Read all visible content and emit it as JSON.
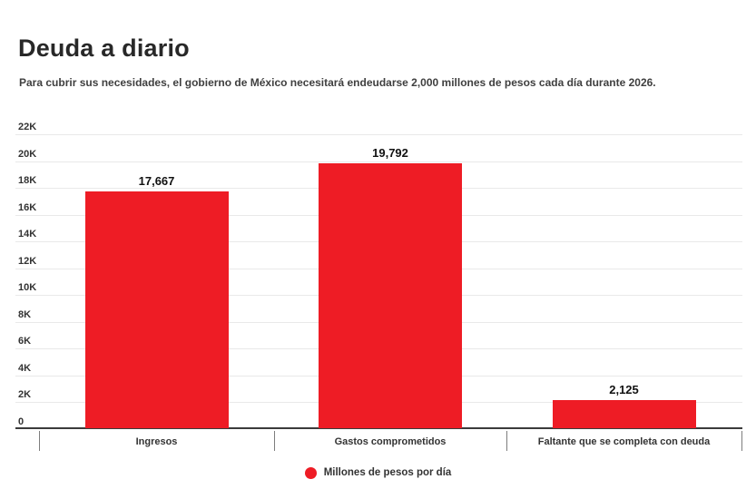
{
  "header": {
    "title": "Deuda a diario",
    "subtitle": "Para cubrir sus necesidades, el gobierno de México necesitará endeudarse 2,000 millones de pesos cada día durante 2026."
  },
  "chart_data": {
    "type": "bar",
    "title": "Deuda a diario",
    "subtitle": "Para cubrir sus necesidades, el gobierno de México necesitará endeudarse 2,000 millones de pesos cada día durante 2026.",
    "categories": [
      "Ingresos",
      "Gastos comprometidos",
      "Faltante que se completa con deuda"
    ],
    "values": [
      17667,
      19792,
      2125
    ],
    "value_labels": [
      "17,667",
      "19,792",
      "2,125"
    ],
    "xlabel": "",
    "ylabel": "",
    "ylim": [
      0,
      22000
    ],
    "ytick_labels": [
      "22K",
      "20K",
      "18K",
      "16K",
      "14K",
      "12K",
      "10K",
      "8K",
      "6K",
      "4K",
      "2K",
      "0"
    ],
    "ytick_values": [
      22000,
      20000,
      18000,
      16000,
      14000,
      12000,
      10000,
      8000,
      6000,
      4000,
      2000,
      0
    ],
    "grid": "horizontal",
    "legend": {
      "label": "Millones de pesos por día",
      "position": "bottom-center"
    },
    "colors": {
      "bar": "#ee1c25",
      "legend_marker": "#ee1c25",
      "gridline": "#e9e9e9",
      "baseline": "#3b3b3b",
      "text": "#333333"
    }
  }
}
